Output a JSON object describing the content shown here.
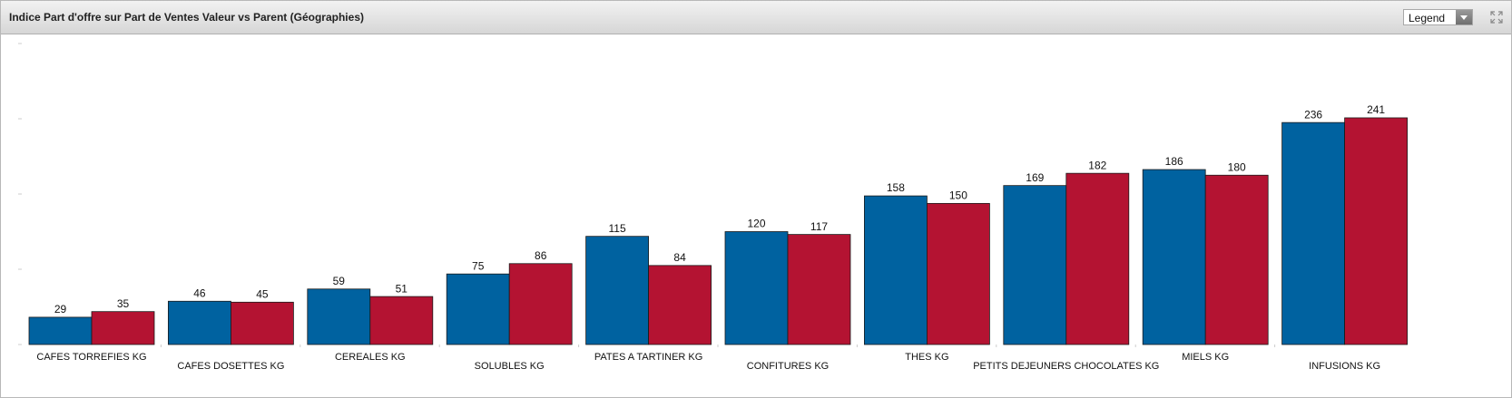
{
  "ui": {
    "legend_button": "Legend"
  },
  "chart_data": {
    "type": "bar",
    "title": "Indice Part d'offre sur Part de Ventes Valeur vs Parent (Géographies)",
    "categories": [
      "CAFES TORREFIES KG",
      "CAFES DOSETTES KG",
      "CEREALES KG",
      "SOLUBLES KG",
      "PATES A TARTINER KG",
      "CONFITURES KG",
      "THES KG",
      "PETITS DEJEUNERS CHOCOLATES KG",
      "MIELS KG",
      "INFUSIONS KG"
    ],
    "series": [
      {
        "color": "#0062a0",
        "values": [
          29,
          46,
          59,
          75,
          115,
          120,
          158,
          169,
          186,
          236
        ]
      },
      {
        "color": "#b41332",
        "values": [
          35,
          45,
          51,
          86,
          84,
          117,
          150,
          182,
          180,
          241
        ]
      }
    ],
    "ylim": [
      0,
      320
    ],
    "yticks": [
      0,
      80,
      160,
      240,
      320
    ],
    "grid": false
  }
}
